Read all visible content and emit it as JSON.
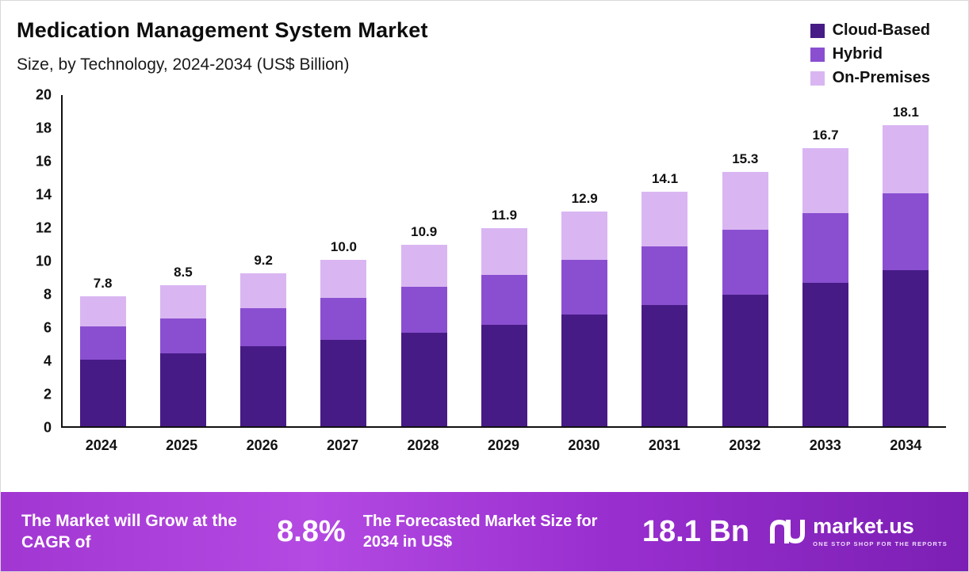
{
  "header": {
    "title": "Medication Management System Market",
    "subtitle": "Size, by Technology, 2024-2034 (US$ Billion)"
  },
  "chart_data": {
    "type": "bar",
    "stacked": true,
    "title": "Medication Management System Market",
    "subtitle": "Size, by Technology, 2024-2034 (US$ Billion)",
    "xlabel": "",
    "ylabel": "US$ Billion",
    "ylim": [
      0,
      20
    ],
    "ytick_step": 2,
    "grid": false,
    "legend_position": "top-right",
    "categories": [
      "2024",
      "2025",
      "2026",
      "2027",
      "2028",
      "2029",
      "2030",
      "2031",
      "2032",
      "2033",
      "2034"
    ],
    "series": [
      {
        "name": "Cloud-Based",
        "color": "#471b86",
        "values": [
          4.0,
          4.4,
          4.8,
          5.2,
          5.6,
          6.1,
          6.7,
          7.3,
          7.9,
          8.6,
          9.4
        ]
      },
      {
        "name": "Hybrid",
        "color": "#8a4fd0",
        "values": [
          2.0,
          2.1,
          2.3,
          2.5,
          2.8,
          3.0,
          3.3,
          3.5,
          3.9,
          4.2,
          4.6
        ]
      },
      {
        "name": "On-Premises",
        "color": "#d9b6f2",
        "values": [
          1.8,
          2.0,
          2.1,
          2.3,
          2.5,
          2.8,
          2.9,
          3.3,
          3.5,
          3.9,
          4.1
        ]
      }
    ],
    "totals": [
      "7.8",
      "8.5",
      "9.2",
      "10.0",
      "10.9",
      "11.9",
      "12.9",
      "14.1",
      "15.3",
      "16.7",
      "18.1"
    ]
  },
  "banner": {
    "cagr_label": "The Market will Grow at the CAGR of",
    "cagr_value": "8.8%",
    "forecast_label": "The Forecasted Market Size for 2034 in US$",
    "forecast_value": "18.1 Bn",
    "logo_text": "market.us",
    "logo_tagline": "ONE STOP SHOP FOR THE REPORTS"
  }
}
